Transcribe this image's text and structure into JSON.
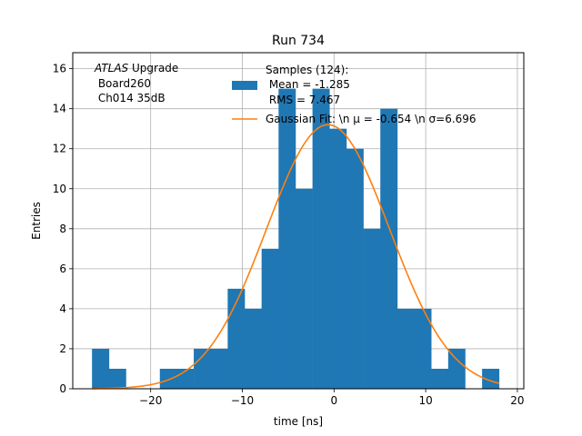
{
  "chart_data": {
    "type": "bar",
    "title": "Run 734",
    "xlabel": "time [ns]",
    "ylabel": "Entries",
    "xlim": [
      -28.5,
      20.7
    ],
    "ylim": [
      0,
      16.8
    ],
    "xticks": [
      -20,
      -10,
      0,
      10,
      20
    ],
    "yticks": [
      0,
      2,
      4,
      6,
      8,
      10,
      12,
      14,
      16
    ],
    "grid": true,
    "annotation": {
      "italic": "ATLAS",
      "rest": " Upgrade",
      "line2": " Board260",
      "line3": " Ch014 35dB"
    },
    "legend": {
      "placement": "top-right",
      "histogram": {
        "line1": "Samples (124):",
        "line2": " Mean = -1.285",
        "line3": " RMS = 7.467"
      },
      "fit": {
        "label": "Gaussian Fit: \\n μ = -0.654 \\n σ=6.696"
      }
    },
    "histogram": {
      "name": "Samples",
      "color": "#1f77b4",
      "bin_edges": [
        -26.4,
        -24.55,
        -22.7,
        -20.85,
        -19.0,
        -17.15,
        -15.3,
        -13.45,
        -11.6,
        -9.75,
        -7.9,
        -6.05,
        -4.2,
        -2.35,
        -0.5,
        1.35,
        3.2,
        5.05,
        6.9,
        8.75,
        10.6,
        12.45,
        14.3,
        16.15,
        18.0
      ],
      "counts": [
        2,
        1,
        0,
        0,
        1,
        1,
        2,
        2,
        5,
        4,
        7,
        15,
        10,
        15,
        13,
        12,
        8,
        14,
        4,
        4,
        1,
        2,
        0,
        1
      ]
    },
    "fit": {
      "name": "Gaussian Fit",
      "color": "#ff7f0e",
      "mu": -0.654,
      "sigma": 6.696,
      "amplitude": 13.2,
      "x_range": [
        -26.4,
        18.0
      ]
    }
  }
}
